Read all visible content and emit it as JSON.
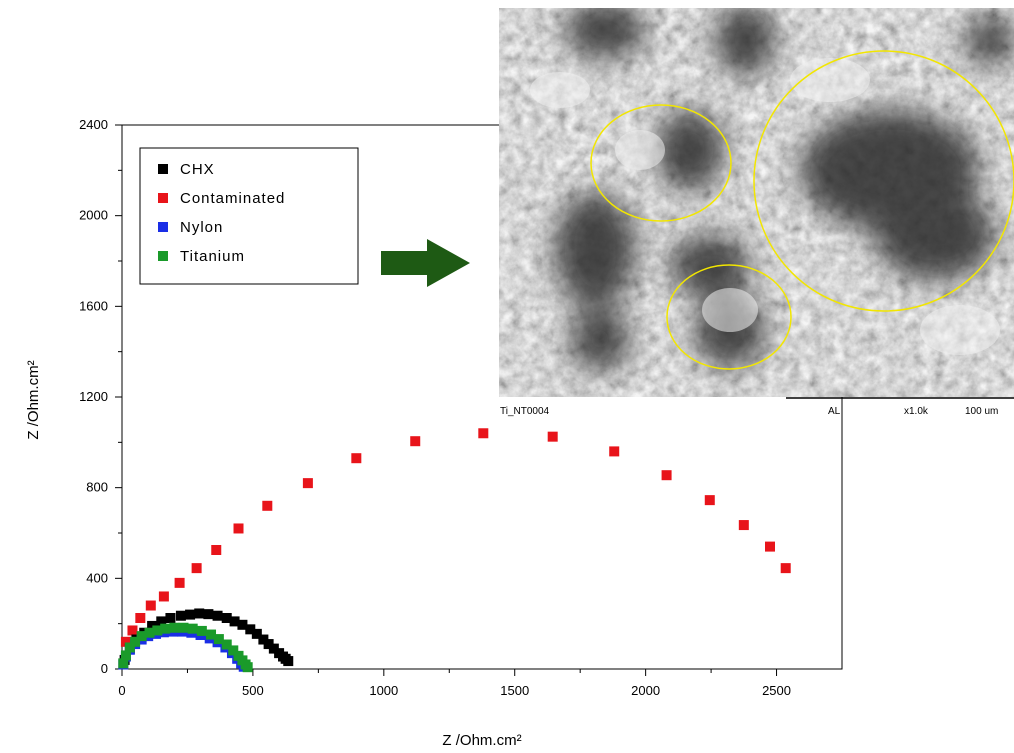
{
  "chart_data": {
    "type": "scatter",
    "xlabel": "Z /Ohm.cm²",
    "ylabel": "Z /Ohm.cm²",
    "xlim": [
      0,
      2750
    ],
    "ylim": [
      0,
      2400
    ],
    "x_ticks": [
      "0",
      "500",
      "1000",
      "1500",
      "2000",
      "2500"
    ],
    "y_ticks": [
      "0",
      "400",
      "800",
      "1200",
      "1600",
      "2000",
      "2400"
    ],
    "legend_position": "top-left",
    "series": [
      {
        "name": "CHX",
        "color": "#000000",
        "x": [
          10,
          30,
          55,
          85,
          115,
          150,
          185,
          225,
          260,
          295,
          330,
          365,
          400,
          430,
          460,
          490,
          515,
          540,
          560,
          580,
          600,
          615,
          625,
          635
        ],
        "y": [
          40,
          90,
          130,
          160,
          190,
          210,
          225,
          235,
          240,
          245,
          242,
          235,
          225,
          210,
          195,
          175,
          155,
          130,
          110,
          90,
          70,
          55,
          45,
          35
        ]
      },
      {
        "name": "Contaminated",
        "color": "#e8141a",
        "x": [
          15,
          40,
          70,
          110,
          160,
          220,
          285,
          360,
          445,
          555,
          710,
          895,
          1120,
          1380,
          1645,
          1880,
          2080,
          2245,
          2375,
          2475,
          2535
        ],
        "y": [
          120,
          170,
          225,
          280,
          320,
          380,
          445,
          525,
          620,
          720,
          820,
          930,
          1005,
          1040,
          1025,
          960,
          855,
          745,
          635,
          540,
          445
        ]
      },
      {
        "name": "Nylon",
        "color": "#1a2ee6",
        "x": [
          5,
          15,
          30,
          50,
          75,
          100,
          130,
          160,
          195,
          230,
          265,
          300,
          335,
          365,
          395,
          420,
          440,
          455,
          465
        ],
        "y": [
          20,
          55,
          85,
          110,
          130,
          145,
          155,
          162,
          165,
          165,
          160,
          150,
          135,
          118,
          95,
          70,
          45,
          25,
          10
        ]
      },
      {
        "name": "Titanium",
        "color": "#1a9a2a",
        "x": [
          5,
          15,
          30,
          50,
          75,
          105,
          135,
          165,
          200,
          235,
          270,
          305,
          340,
          370,
          400,
          425,
          445,
          460,
          472,
          480
        ],
        "y": [
          25,
          60,
          95,
          120,
          145,
          160,
          170,
          178,
          182,
          182,
          178,
          168,
          152,
          132,
          108,
          82,
          58,
          38,
          20,
          8
        ]
      }
    ]
  },
  "inset": {
    "caption_left": "Ti_NT0004",
    "caption_mid": "AL",
    "caption_zoom": "x1.0k",
    "caption_scale": "100 um",
    "highlight_color": "#f2e600"
  },
  "arrow_color": "#1e5a14"
}
